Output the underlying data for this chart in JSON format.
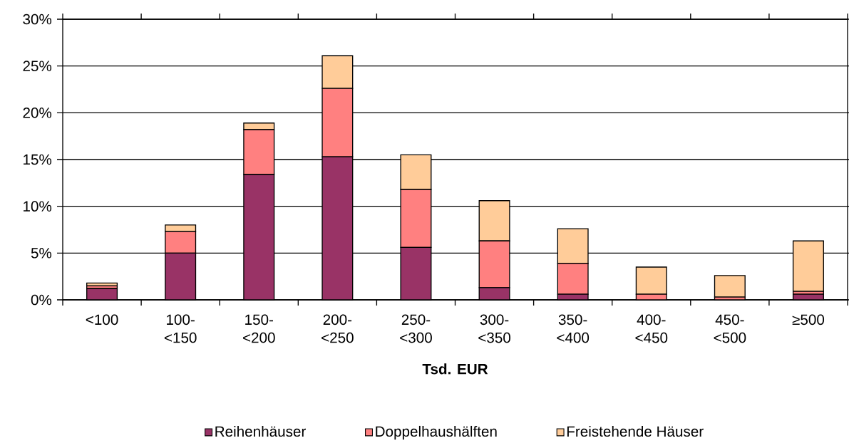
{
  "chart_data": {
    "type": "bar",
    "stacked": true,
    "xlabel": "Tsd. EUR",
    "categories": [
      "<100",
      "100-<150",
      "150-<200",
      "200-<250",
      "250-<300",
      "300-<350",
      "350-<400",
      "400-<450",
      "450-<500",
      "≥500"
    ],
    "series": [
      {
        "name": "Reihenhäuser",
        "color": "#993366",
        "values": [
          1.2,
          5.0,
          13.4,
          15.3,
          5.6,
          1.3,
          0.6,
          0,
          0,
          0.6
        ]
      },
      {
        "name": "Doppelhaushälften",
        "color": "#ff8080",
        "values": [
          0.3,
          2.3,
          4.8,
          7.3,
          6.2,
          5.0,
          3.3,
          0.6,
          0.3,
          0.3
        ]
      },
      {
        "name": "Freistehende Häuser",
        "color": "#ffcc99",
        "values": [
          0.3,
          0.7,
          0.7,
          3.5,
          3.7,
          4.3,
          3.7,
          2.9,
          2.3,
          5.4
        ]
      }
    ],
    "ylim": [
      0,
      30
    ],
    "yticks": [
      {
        "value": 0,
        "label": "0%"
      },
      {
        "value": 5,
        "label": "5%"
      },
      {
        "value": 10,
        "label": "10%"
      },
      {
        "value": 15,
        "label": "15%"
      },
      {
        "value": 20,
        "label": "20%"
      },
      {
        "value": 25,
        "label": "25%"
      },
      {
        "value": 30,
        "label": "30%"
      }
    ],
    "grid": "y",
    "legend": "bottom"
  }
}
